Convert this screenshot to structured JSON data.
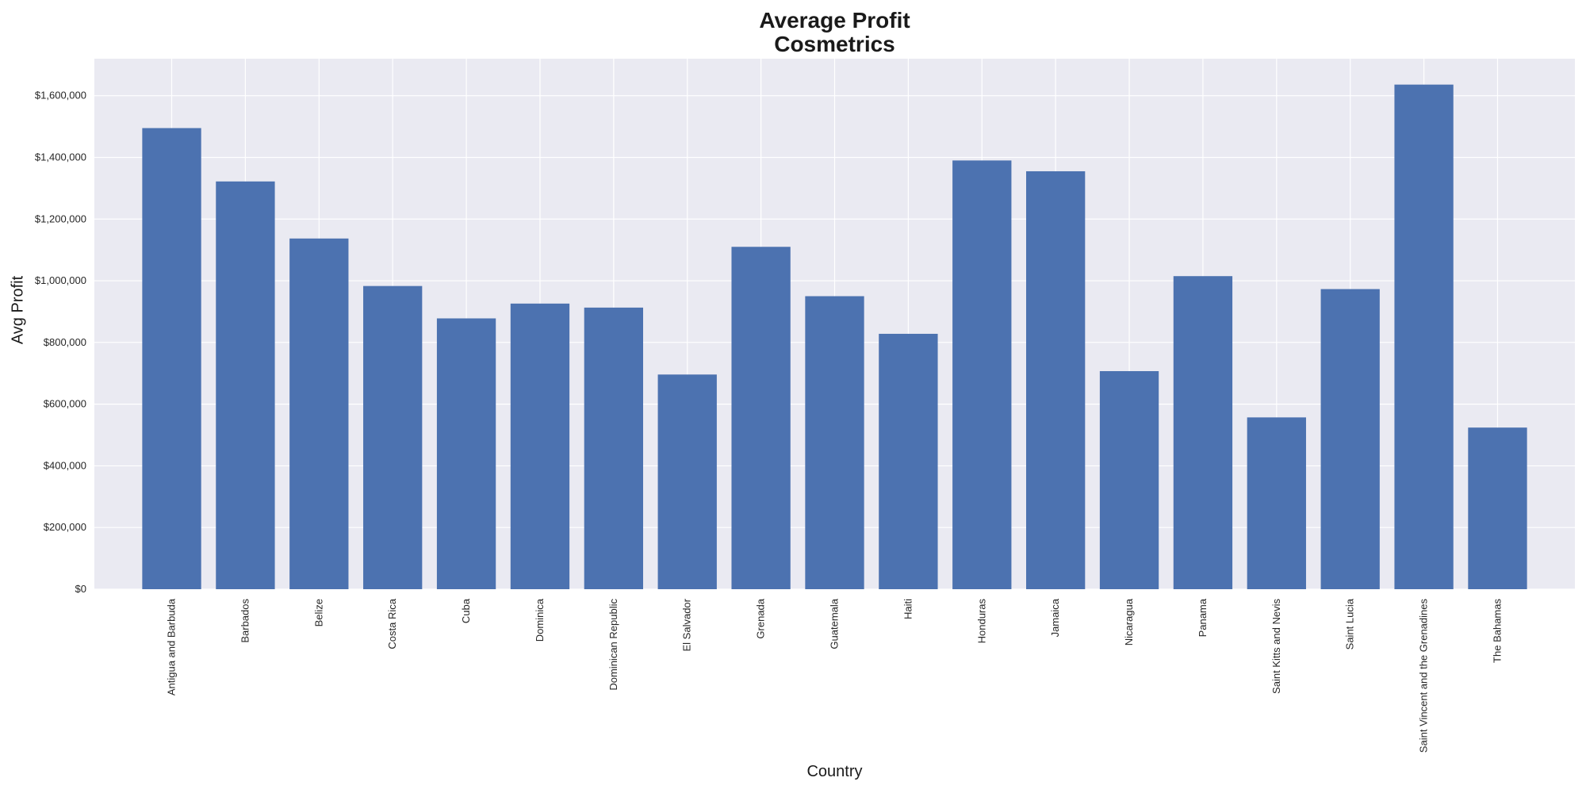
{
  "chart_data": {
    "type": "bar",
    "title_line1": "Average Profit",
    "title_line2": "Cosmetrics",
    "xlabel": "Country",
    "ylabel": "Avg Profit",
    "ylim": [
      0,
      1720000
    ],
    "yticks": [
      0,
      200000,
      400000,
      600000,
      800000,
      1000000,
      1200000,
      1400000,
      1600000
    ],
    "ytick_labels": [
      "$0",
      "$200,000",
      "$400,000",
      "$600,000",
      "$800,000",
      "$1,000,000",
      "$1,200,000",
      "$1,400,000",
      "$1,600,000"
    ],
    "grid": true,
    "bar_color": "#4c72b0",
    "background_color": "#eaeaf2",
    "categories": [
      "Antigua and Barbuda",
      "Barbados",
      "Belize",
      "Costa Rica",
      "Cuba",
      "Dominica",
      "Dominican Republic",
      "El Salvador",
      "Grenada",
      "Guatemala",
      "Haiti",
      "Honduras",
      "Jamaica",
      "Nicaragua",
      "Panama",
      "Saint Kitts and Nevis",
      "Saint Lucia",
      "Saint Vincent and the Grenadines",
      "The Bahamas"
    ],
    "values": [
      1495000,
      1322000,
      1137000,
      983000,
      878000,
      926000,
      913000,
      696000,
      1110000,
      950000,
      828000,
      1390000,
      1355000,
      707000,
      1015000,
      557000,
      973000,
      1636000,
      524000
    ]
  }
}
